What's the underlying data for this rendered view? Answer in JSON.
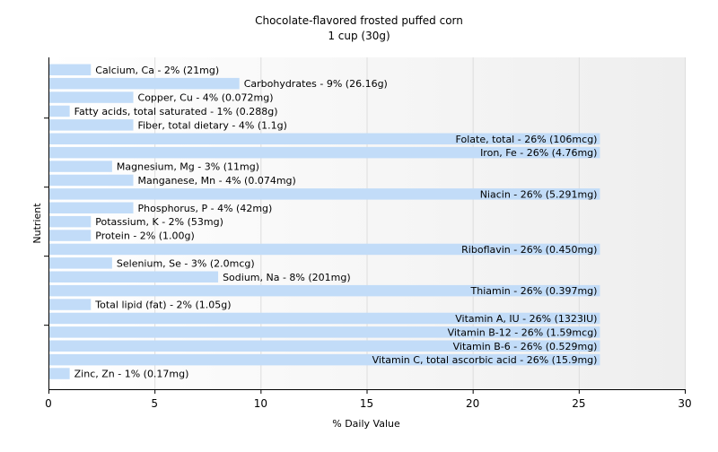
{
  "chart_data": {
    "type": "bar",
    "orientation": "horizontal",
    "title": "Chocolate-flavored frosted puffed corn",
    "subtitle": "1 cup (30g)",
    "xlabel": "% Daily Value",
    "ylabel": "Nutrient",
    "xlim": [
      0,
      30
    ],
    "xticks": [
      0,
      5,
      10,
      15,
      20,
      25,
      30
    ],
    "grid": true,
    "bar_color": "#c2dcf8",
    "categories": [
      "Calcium, Ca",
      "Carbohydrates",
      "Copper, Cu",
      "Fatty acids, total saturated",
      "Fiber, total dietary",
      "Folate, total",
      "Iron, Fe",
      "Magnesium, Mg",
      "Manganese, Mn",
      "Niacin",
      "Phosphorus, P",
      "Potassium, K",
      "Protein",
      "Riboflavin",
      "Selenium, Se",
      "Sodium, Na",
      "Thiamin",
      "Total lipid (fat)",
      "Vitamin A, IU",
      "Vitamin B-12",
      "Vitamin B-6",
      "Vitamin C, total ascorbic acid",
      "Zinc, Zn"
    ],
    "values": [
      2,
      9,
      4,
      1,
      4,
      26,
      26,
      3,
      4,
      26,
      4,
      2,
      2,
      26,
      3,
      8,
      26,
      2,
      26,
      26,
      26,
      26,
      1
    ],
    "labels": [
      "Calcium, Ca - 2% (21mg)",
      "Carbohydrates - 9% (26.16g)",
      "Copper, Cu - 4% (0.072mg)",
      "Fatty acids, total saturated - 1% (0.288g)",
      "Fiber, total dietary - 4% (1.1g)",
      "Folate, total - 26% (106mcg)",
      "Iron, Fe - 26% (4.76mg)",
      "Magnesium, Mg - 3% (11mg)",
      "Manganese, Mn - 4% (0.074mg)",
      "Niacin - 26% (5.291mg)",
      "Phosphorus, P - 4% (42mg)",
      "Potassium, K - 2% (53mg)",
      "Protein - 2% (1.00g)",
      "Riboflavin - 26% (0.450mg)",
      "Selenium, Se - 3% (2.0mcg)",
      "Sodium, Na - 8% (201mg)",
      "Thiamin - 26% (0.397mg)",
      "Total lipid (fat) - 2% (1.05g)",
      "Vitamin A, IU - 26% (1323IU)",
      "Vitamin B-12 - 26% (1.59mcg)",
      "Vitamin B-6 - 26% (0.529mg)",
      "Vitamin C, total ascorbic acid - 26% (15.9mg)",
      "Zinc, Zn - 1% (0.17mg)"
    ]
  }
}
